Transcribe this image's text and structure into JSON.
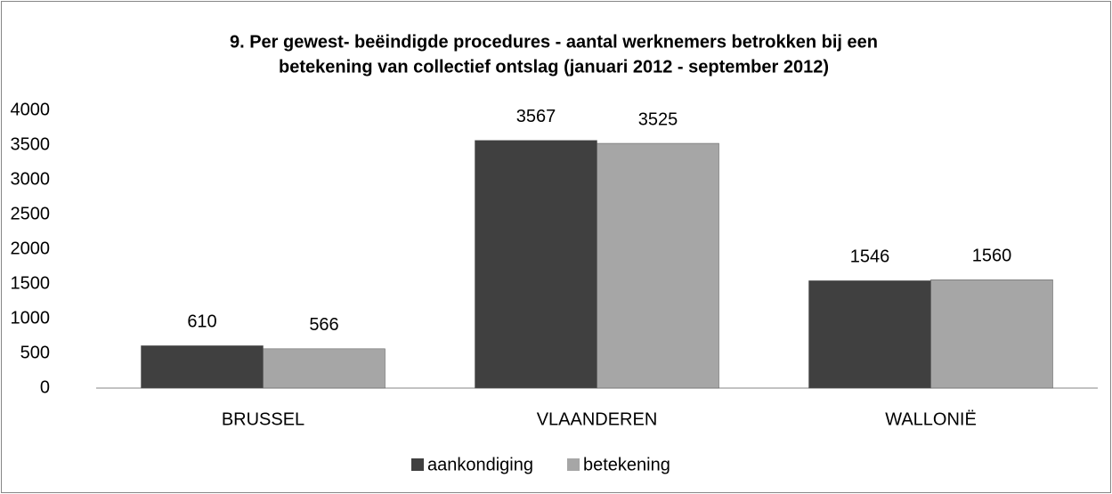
{
  "chart_data": {
    "type": "bar",
    "title": [
      "9. Per gewest- beëindigde procedures - aantal werknemers betrokken bij een",
      "betekening van collectief ontslag (januari 2012 - september 2012)"
    ],
    "categories": [
      "BRUSSEL",
      "VLAANDEREN",
      "WALLONIË"
    ],
    "series": [
      {
        "name": "aankondiging",
        "color": "#404040",
        "values": [
          610,
          3567,
          1546
        ]
      },
      {
        "name": "betekening",
        "color": "#a6a6a6",
        "values": [
          566,
          3525,
          1560
        ]
      }
    ],
    "ylim": [
      0,
      4000
    ],
    "yticks": [
      0,
      500,
      1000,
      1500,
      2000,
      2500,
      3000,
      3500,
      4000
    ],
    "legend": "bottom"
  }
}
